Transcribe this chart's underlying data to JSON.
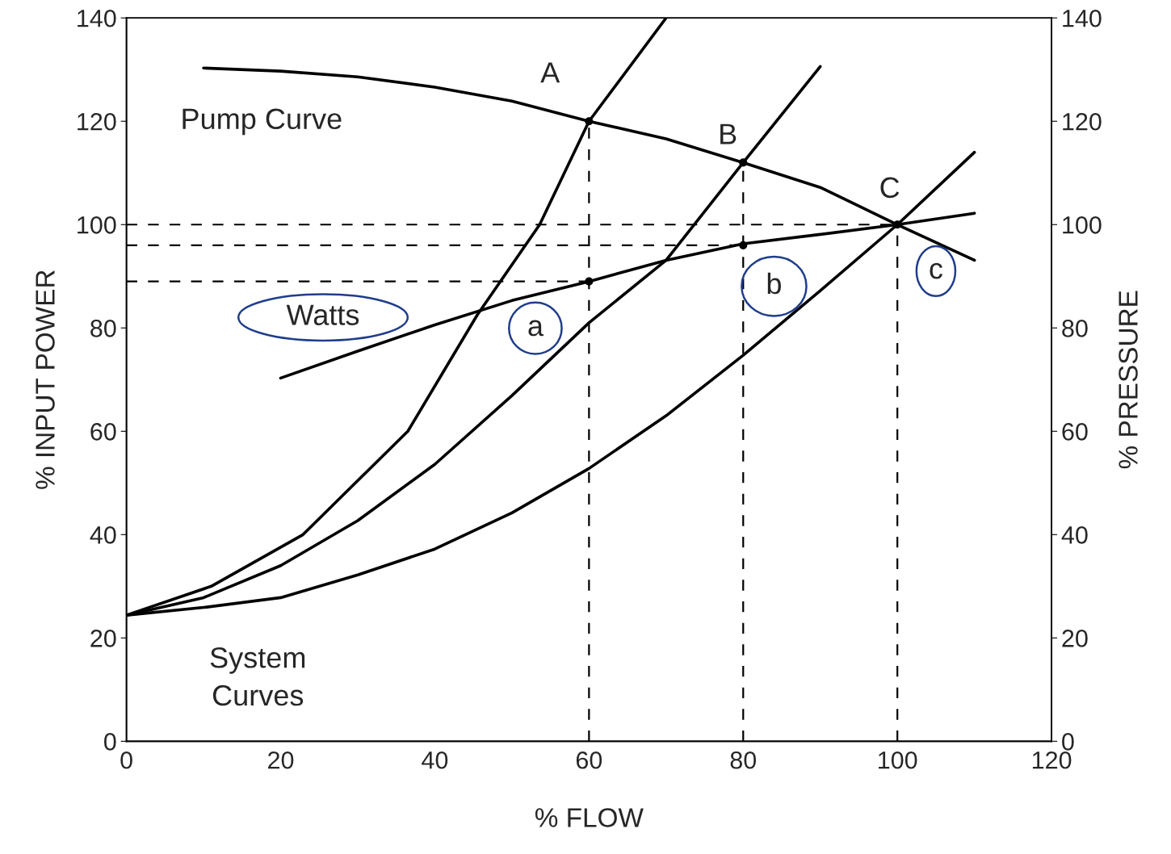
{
  "chart_data": {
    "type": "line",
    "xlabel": "% FLOW",
    "ylabel": "% INPUT POWER",
    "y2label": "% PRESSURE",
    "xlim": [
      0,
      120
    ],
    "xticks": [
      0,
      20,
      40,
      60,
      80,
      100,
      120
    ],
    "ylim": [
      0,
      140
    ],
    "yticks": [
      0,
      20,
      40,
      60,
      80,
      100,
      120,
      140
    ],
    "y2lim": [
      0,
      140
    ],
    "y2ticks": [
      0,
      20,
      40,
      60,
      80,
      100,
      120,
      140
    ],
    "grid": false,
    "legend": false,
    "series": [
      {
        "color": "#000000",
        "line_style": "solid",
        "x": [
          10,
          20,
          30,
          40,
          50,
          60,
          70,
          80,
          90,
          100,
          110
        ],
        "values": [
          130.3,
          129.7,
          128.6,
          126.6,
          123.9,
          120,
          116.6,
          112,
          107.2,
          100,
          93.1
        ]
      },
      {
        "color": "#000000",
        "line_style": "solid",
        "x": [
          20,
          30,
          40,
          50,
          60,
          70,
          80,
          90,
          100,
          110
        ],
        "values": [
          70.3,
          75.5,
          80.6,
          85.3,
          89,
          93.1,
          96.3,
          98.1,
          100,
          102.2
        ]
      },
      {
        "color": "#000000",
        "line_style": "solid",
        "x": [
          0,
          11,
          22.9,
          36.5,
          45.5,
          53.6,
          60,
          70
        ],
        "values": [
          24.4,
          30,
          40,
          60,
          82.5,
          100,
          120,
          140
        ]
      },
      {
        "color": "#000000",
        "line_style": "solid",
        "x": [
          0,
          10,
          20,
          30,
          40,
          50,
          60,
          70,
          80,
          90
        ],
        "values": [
          24.4,
          27.8,
          34,
          42.7,
          53.6,
          66.9,
          81,
          93.1,
          112,
          130.6
        ]
      },
      {
        "color": "#000000",
        "line_style": "solid",
        "x": [
          0,
          10,
          20,
          30,
          40,
          50,
          60,
          70,
          80,
          90,
          100,
          110
        ],
        "values": [
          24.4,
          25.9,
          27.8,
          32.2,
          37.2,
          44.2,
          52.8,
          63,
          74.7,
          87.2,
          100,
          114
        ]
      },
      {
        "color": "#000000",
        "line_style": "dashed",
        "x": [
          0,
          100
        ],
        "values": [
          100,
          100
        ]
      },
      {
        "color": "#000000",
        "line_style": "dashed",
        "x": [
          0,
          80
        ],
        "values": [
          96,
          96
        ]
      },
      {
        "color": "#000000",
        "line_style": "dashed",
        "x": [
          0,
          60
        ],
        "values": [
          89,
          89
        ]
      },
      {
        "color": "#000000",
        "line_style": "dashed",
        "x": [
          60,
          60
        ],
        "values": [
          0,
          120
        ]
      },
      {
        "color": "#000000",
        "line_style": "dashed",
        "x": [
          80,
          80
        ],
        "values": [
          0,
          112
        ]
      },
      {
        "color": "#000000",
        "line_style": "dashed",
        "x": [
          100,
          100
        ],
        "values": [
          0,
          100
        ]
      },
      {
        "type": "scatter",
        "marker": "circle",
        "color": "#000000",
        "x": [
          60,
          80,
          100,
          60,
          80
        ],
        "values": [
          120,
          112,
          100,
          89,
          96
        ]
      }
    ],
    "annotations": [
      "A",
      "B",
      "C",
      "Pump Curve",
      "Watts",
      "a",
      "b",
      "c",
      "System\nCurves"
    ]
  }
}
